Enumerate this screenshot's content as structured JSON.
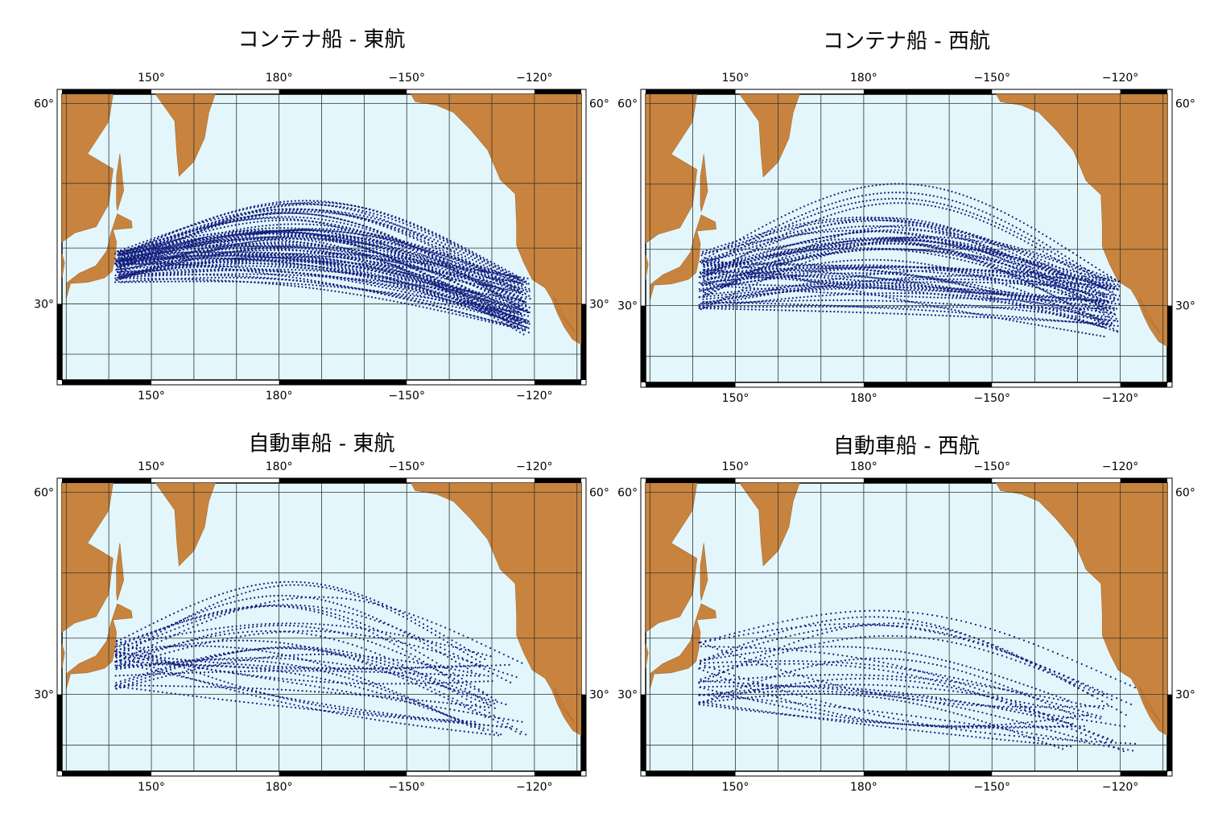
{
  "panels": [
    {
      "title": "コンテナ船 - 東航",
      "lon_labels": [
        "150°",
        "180°",
        "−150°",
        "−120°"
      ],
      "lat_labels": [
        "60°",
        "30°"
      ]
    },
    {
      "title": "コンテナ船 - 西航",
      "lon_labels": [
        "150°",
        "180°",
        "−150°",
        "−120°"
      ],
      "lat_labels": [
        "60°",
        "30°"
      ]
    },
    {
      "title": "自動車船 - 東航",
      "lon_labels": [
        "150°",
        "180°",
        "−150°",
        "−120°"
      ],
      "lat_labels": [
        "60°",
        "30°"
      ]
    },
    {
      "title": "自動車船 - 西航",
      "lon_labels": [
        "150°",
        "180°",
        "−150°",
        "−120°"
      ],
      "lat_labels": [
        "60°",
        "30°"
      ]
    }
  ]
}
